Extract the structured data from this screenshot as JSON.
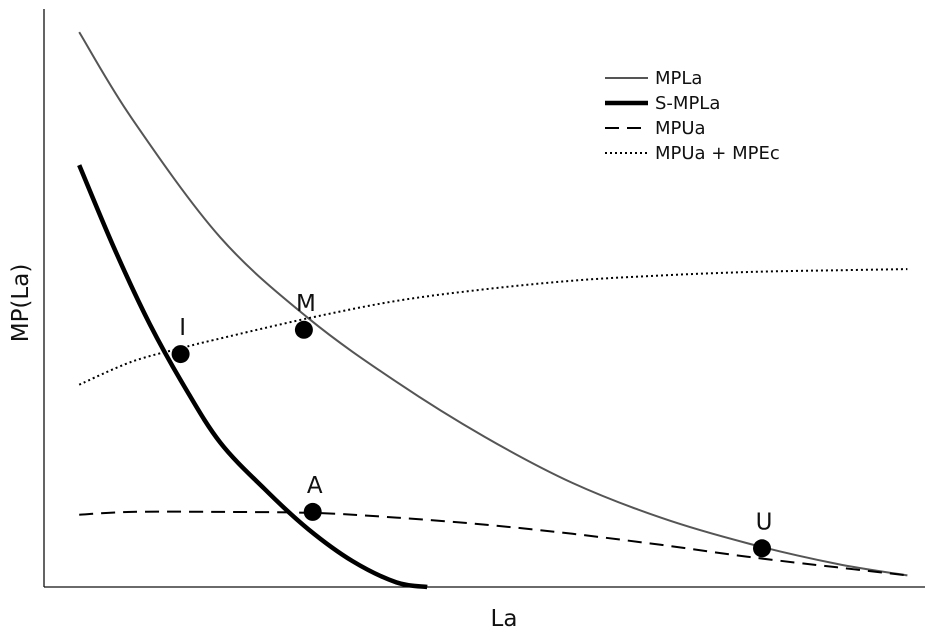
{
  "chart_data": {
    "type": "line",
    "xlabel": "La",
    "ylabel": "MP(La)",
    "grid": false,
    "legend_position": "top-right",
    "xlim": [
      0,
      100
    ],
    "ylim": [
      0,
      100
    ],
    "series": [
      {
        "name": "MPLa",
        "color": "#555555",
        "style": "solid-thin",
        "x": [
          4,
          10,
          20,
          30,
          40,
          50,
          60,
          70,
          80,
          90,
          98
        ],
        "y": [
          96,
          81,
          60.5,
          46.5,
          35.5,
          26,
          18,
          12,
          7.5,
          4,
          2
        ]
      },
      {
        "name": "S-MPLa",
        "color": "#000000",
        "style": "solid-thick",
        "x": [
          4,
          8,
          12,
          16,
          20,
          25,
          30,
          35,
          40,
          43.5
        ],
        "y": [
          73,
          58.5,
          45.5,
          34.5,
          25,
          17,
          10,
          4.5,
          0.8,
          0
        ]
      },
      {
        "name": "MPUa",
        "color": "#000000",
        "style": "dashed",
        "x": [
          4,
          10,
          20,
          31,
          40,
          50,
          60,
          70,
          80,
          90,
          98
        ],
        "y": [
          12.5,
          13,
          13,
          12.8,
          12,
          10.8,
          9.2,
          7.3,
          5.2,
          3.4,
          2
        ]
      },
      {
        "name": "MPUa + MPEc",
        "color": "#000000",
        "style": "dotted",
        "x": [
          4,
          10,
          16,
          20,
          30,
          40,
          50,
          60,
          70,
          80,
          90,
          98
        ],
        "y": [
          35,
          39,
          41.5,
          43,
          46.5,
          49.5,
          51.5,
          53,
          53.9,
          54.5,
          54.8,
          55
        ]
      }
    ],
    "points": [
      {
        "label": "M",
        "x": 29.5,
        "y": 44.5
      },
      {
        "label": "I",
        "x": 15.5,
        "y": 40.3
      },
      {
        "label": "A",
        "x": 30.5,
        "y": 13.0
      },
      {
        "label": "U",
        "x": 81.5,
        "y": 6.7
      }
    ]
  }
}
